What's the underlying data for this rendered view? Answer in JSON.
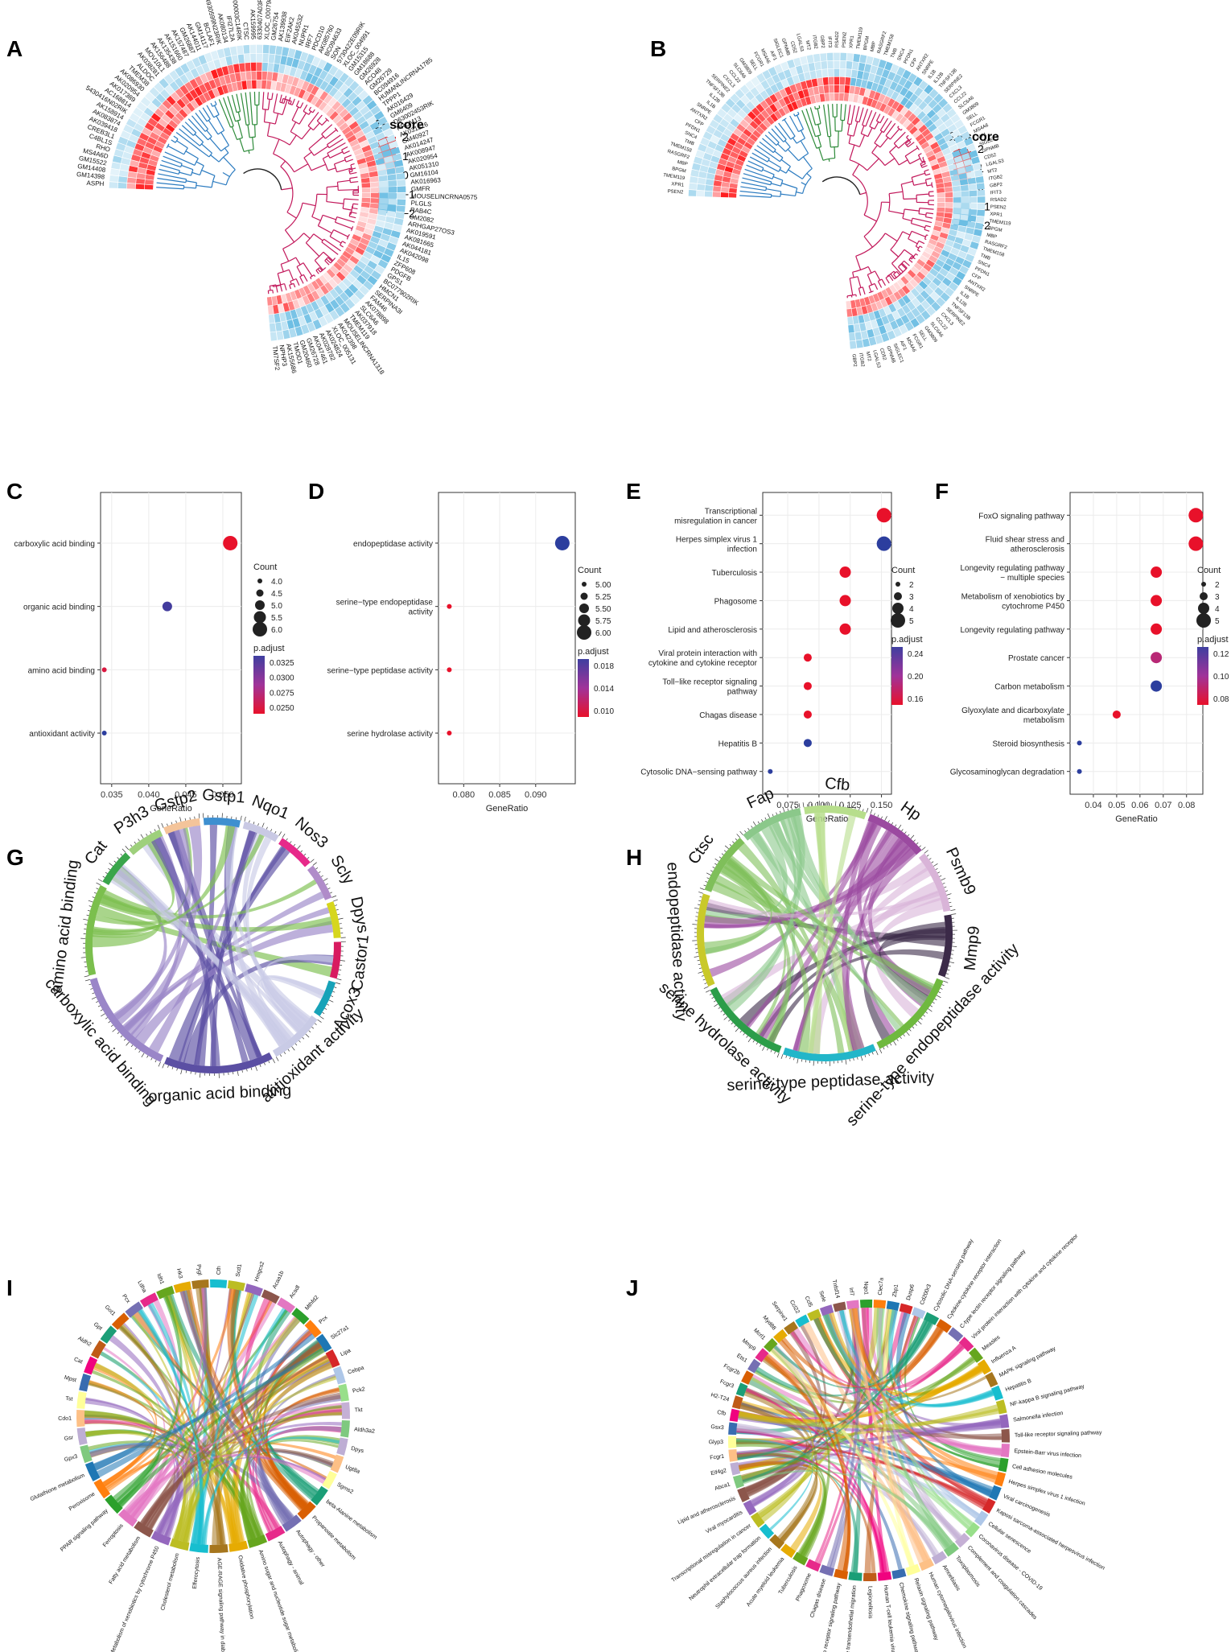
{
  "panels": {
    "A": {
      "label": "A",
      "legend_title": "Z−score",
      "legend_ticks": [
        "2",
        "1",
        "0",
        "−1",
        "−2"
      ],
      "up_genes": [
        "ASPH",
        "GM14398",
        "GM14408",
        "GM15522",
        "MS4A6D",
        "RHO",
        "C4BL1S",
        "CREB3L1",
        "AK039418",
        "AK083874",
        "AK158914",
        "5430416N02RIK",
        "AC168814",
        "AK017389",
        "AK020954",
        "AK086930",
        "TMEM38",
        "ALDOC",
        "AK038281",
        "MOV10L1",
        "AK156488",
        "AK135438",
        "AK151660",
        "AK157487",
        "GM26887",
        "AK144011",
        "GM14117",
        "BCLAF1",
        "4930599N23RIK",
        "AK080134",
        "IFI27L2A",
        "2400003C14RIK",
        "CTSC",
        "AK159995",
        "6330407A03RIK"
      ],
      "down_genes": [
        "XLOC_000798",
        "GM26754",
        "AK139938",
        "EIF2AK2",
        "AK045532",
        "NUPR1",
        "IRF7",
        "PDCD10",
        "AK085760",
        "BC094633",
        "SON",
        "5730422E09RIK",
        "XLOC_004991",
        "GM15315",
        "GM18688",
        "GM26928",
        "ACO48",
        "GM26729",
        "BC094916",
        "HUMANLINCRNA1785",
        "TPPP1",
        "AK016429",
        "GM6409",
        "D63002453RIK",
        "PRDM13",
        "AK031316",
        "GM40927",
        "AK014247",
        "AK008947",
        "AK020954",
        "AK051310",
        "GM16104",
        "AK016963",
        "GMFR",
        "MOUSELINCRNA0575",
        "PLGLS",
        "RAB4C",
        "GM2082",
        "ARHGAP27OS3",
        "AK019591",
        "AK081665",
        "AK044181",
        "AK042098",
        "IL15",
        "ZFP608",
        "PDGFB",
        "GPS1",
        "BC077902RIK",
        "HMCN1",
        "SERPINA3I",
        "FAM46",
        "AK078898",
        "SLC6A6",
        "AK037918",
        "TMEM119",
        "MOUSELINCRNA1318",
        "AK042398",
        "XLOC_005131",
        "AK024824",
        "AK028782",
        "AK047461",
        "GM26728",
        "GM20460",
        "TMOD1",
        "AK155686",
        "NPHP3",
        "TM7SF2"
      ]
    },
    "B": {
      "label": "B",
      "legend_title": "Z−score",
      "legend_ticks": [
        "2",
        "1",
        "0",
        "−1",
        "−2"
      ],
      "genes": [
        "PSEN2",
        "XPR1",
        "TMEM119",
        "BPGM",
        "MBP",
        "RASGRF2",
        "TMEM158",
        "TMB",
        "SNC4",
        "PFDN1",
        "CFP",
        "ANTXR2",
        "SNRPE",
        "IL1B",
        "IL12B",
        "TNFSF13B",
        "SERPINE2",
        "CXCL3",
        "CCL22",
        "SLC6A6",
        "GM3809",
        "SELL",
        "FCGR1",
        "MS4A6",
        "AIF1",
        "SIGLEC1",
        "GPNMB",
        "CD52",
        "LGALS3",
        "MT2",
        "ITGB2",
        "GBP2",
        "IFIT3",
        "RSAD2"
      ]
    },
    "C": {
      "label": "C",
      "chart_id": "C"
    },
    "D": {
      "label": "D",
      "chart_id": "D"
    },
    "E": {
      "label": "E",
      "chart_id": "E"
    },
    "F": {
      "label": "F",
      "chart_id": "F"
    },
    "G": {
      "label": "G",
      "genes": [
        {
          "name": "Cat",
          "color": "#3aa54b"
        },
        {
          "name": "P3h3",
          "color": "#9ed07c"
        },
        {
          "name": "Gstp2",
          "color": "#f4c49a"
        },
        {
          "name": "Gstp1",
          "color": "#3e8fd0"
        },
        {
          "name": "Nqo1",
          "color": "#c9c9e4"
        },
        {
          "name": "Nos3",
          "color": "#e7298a"
        },
        {
          "name": "Scly",
          "color": "#b08cc9"
        },
        {
          "name": "Dpys",
          "color": "#d6d61e"
        },
        {
          "name": "Castor1",
          "color": "#d81b60"
        },
        {
          "name": "Acox3",
          "color": "#17a2b8"
        }
      ],
      "terms": [
        {
          "name": "antioxidant activity",
          "color": "#c9cbe6"
        },
        {
          "name": "organic acid binding",
          "color": "#5b4fa3"
        },
        {
          "name": "carboxylic acid binding",
          "color": "#9a86c8"
        },
        {
          "name": "amino acid binding",
          "color": "#7bbf4d"
        }
      ]
    },
    "H": {
      "label": "H",
      "genes": [
        {
          "name": "Ctsc",
          "color": "#7fbf5a"
        },
        {
          "name": "Fap",
          "color": "#8bc88a"
        },
        {
          "name": "Cfb",
          "color": "#b7de8c"
        },
        {
          "name": "Hp",
          "color": "#9b4aa0"
        },
        {
          "name": "Psmb9",
          "color": "#d9b4d8"
        },
        {
          "name": "Mmp9",
          "color": "#3b2a48"
        }
      ],
      "terms": [
        {
          "name": "serine-type endopeptidase activity",
          "color": "#6fb93f"
        },
        {
          "name": "serine-type peptidase activity",
          "color": "#22b6c9"
        },
        {
          "name": "serine hydrolase activity",
          "color": "#2c9d49"
        },
        {
          "name": "endopeptidase activity",
          "color": "#c9c92a"
        }
      ]
    },
    "I": {
      "label": "I",
      "top_labels": [
        "Gpx3",
        "Gsr",
        "Cdo1",
        "Tst",
        "Mpst",
        "Cat",
        "Aldh2",
        "Gpt",
        "Got1",
        "Pcx",
        "Ldha",
        "Idh1",
        "Hk3",
        "Pygl",
        "Cth",
        "Scd1",
        "Hmgcs2",
        "Acaa1b",
        "Acadl",
        "Mthfd2",
        "Pcx",
        "Slc27a1",
        "Lipa",
        "Cebpa",
        "Pck2",
        "Tkt",
        "Aldh3a2",
        "Dpys",
        "Ugt8a",
        "Sgms2"
      ],
      "bottom_labels": [
        "beta-Alanine metabolism",
        "Propanoate metabolism",
        "Autophagy - other",
        "Autophagy - animal",
        "Amino sugar and nucleotide sugar metabolism",
        "Oxidative phosphorylation",
        "AGE-RAGE signaling pathway in diabetic complications",
        "Efferocytosis",
        "Cholesterol metabolism",
        "Metabolism of xenobiotics by cytochrome P450",
        "Fatty acid metabolism",
        "Ferroptosis",
        "PPAR signaling pathway",
        "Peroxisome",
        "Glutathione metabolism"
      ]
    },
    "J": {
      "label": "J",
      "top_labels": [
        "Abca1",
        "Eif4g2",
        "Fcgr1",
        "Glyp3",
        "Gsx3",
        "Cfb",
        "H2-T24",
        "Fcgr3",
        "Fcgr2b",
        "Ets1",
        "Mmp9",
        "Mcrl1",
        "Myd88",
        "Serpine1",
        "Ccl22",
        "Ccl5",
        "Sele",
        "Tnfsf14",
        "Irf7",
        "Nqo1",
        "Clec7a",
        "Zbp1",
        "Dusp6",
        "Cd200r3"
      ],
      "bottom_labels": [
        "Cytosolic DNA-sensing pathway",
        "Cytokine-cytokine receptor interaction",
        "C-type lectin receptor signaling pathway",
        "Viral protein interaction with cytokine and cytokine receptor",
        "Measles",
        "Influenza A",
        "MAPK signaling pathway",
        "Hepatitis B",
        "NF-kappa B signaling pathway",
        "Salmonella infection",
        "Toll-like receptor signaling pathway",
        "Epstein-Barr virus infection",
        "Cell adhesion molecules",
        "Herpes simplex virus 1 infection",
        "Viral carcinogenesis",
        "Kaposi sarcoma-associated herpesvirus infection",
        "Cellular senescence",
        "Coronavirus disease - COVID-19",
        "Complement and coagulation cascades",
        "Toxoplasmosis",
        "Amoebiasis",
        "Human cytomegalovirus infection",
        "Relaxin signaling pathway",
        "Chemokine signaling pathway",
        "Human T-cell leukemia virus 1 infection",
        "Legionellosis",
        "Leukocyte transendothelial migration",
        "NOD-like receptor signaling pathway",
        "Chagas disease",
        "Phagosome",
        "Tuberculosis",
        "Acute myeloid leukemia",
        "Staphylococcus aureus infection",
        "Neutrophil extracellular trap formation",
        "Transcriptional misregulation in cancer",
        "Viral myocarditis",
        "Lipid and atherosclerosis"
      ]
    }
  },
  "chart_data": [
    {
      "id": "C",
      "type": "scatter",
      "xlabel": "GeneRatio",
      "ylabel": "",
      "categories": [
        "carboxylic acid binding",
        "organic acid binding",
        "amino acid binding",
        "antioxidant activity"
      ],
      "x": [
        0.051,
        0.0425,
        0.034,
        0.034
      ],
      "count": [
        6,
        5,
        4,
        4
      ],
      "padj": [
        0.025,
        0.034,
        0.026,
        0.035
      ],
      "xlim": [
        0.0335,
        0.0525
      ],
      "xticks": [
        "0.035",
        "0.040",
        "0.045",
        "0.050"
      ],
      "xtick_vals": [
        0.035,
        0.04,
        0.045,
        0.05
      ],
      "count_title": "Count",
      "count_ticks": [
        "4.0",
        "4.5",
        "5.0",
        "5.5",
        "6.0"
      ],
      "count_vals": [
        4.0,
        4.5,
        5.0,
        5.5,
        6.0
      ],
      "padj_title": "p.adjust",
      "padj_ticks": [
        "0.0325",
        "0.0300",
        "0.0275",
        "0.0250"
      ]
    },
    {
      "id": "D",
      "type": "scatter",
      "xlabel": "GeneRatio",
      "ylabel": "",
      "categories": [
        "endopeptidase activity",
        "serine−type endopeptidase\nactivity",
        "serine−type peptidase activity",
        "serine hydrolase activity"
      ],
      "x": [
        0.0937,
        0.078,
        0.078,
        0.078
      ],
      "count": [
        6,
        5,
        5,
        5
      ],
      "padj": [
        0.02,
        0.009,
        0.009,
        0.009
      ],
      "xlim": [
        0.0765,
        0.0955
      ],
      "xticks": [
        "0.080",
        "0.085",
        "0.090"
      ],
      "xtick_vals": [
        0.08,
        0.085,
        0.09
      ],
      "count_title": "Count",
      "count_ticks": [
        "5.00",
        "5.25",
        "5.50",
        "5.75",
        "6.00"
      ],
      "count_vals": [
        5.0,
        5.25,
        5.5,
        5.75,
        6.0
      ],
      "padj_title": "p.adjust",
      "padj_ticks": [
        "0.018",
        "0.014",
        "0.010"
      ]
    },
    {
      "id": "E",
      "type": "scatter",
      "xlabel": "GeneRatio",
      "ylabel": "",
      "categories": [
        "Transcriptional\nmisregulation in cancer",
        "Herpes simplex virus 1\ninfection",
        "Tuberculosis",
        "Phagosome",
        "Lipid and atherosclerosis",
        "Viral protein interaction with\ncytokine and cytokine receptor",
        "Toll−like receptor signaling\npathway",
        "Chagas disease",
        "Hepatitis B",
        "Cytosolic DNA−sensing pathway"
      ],
      "x": [
        0.152,
        0.152,
        0.121,
        0.121,
        0.121,
        0.091,
        0.091,
        0.091,
        0.091,
        0.061
      ],
      "count": [
        5,
        5,
        4,
        4,
        4,
        3,
        3,
        3,
        3,
        2
      ],
      "padj": [
        0.14,
        0.28,
        0.14,
        0.14,
        0.14,
        0.14,
        0.14,
        0.14,
        0.28,
        0.28
      ],
      "xlim": [
        0.055,
        0.158
      ],
      "xticks": [
        "0.075",
        "0.100",
        "0.125",
        "0.150"
      ],
      "xtick_vals": [
        0.075,
        0.1,
        0.125,
        0.15
      ],
      "count_title": "Count",
      "count_ticks": [
        "2",
        "3",
        "4",
        "5"
      ],
      "count_vals": [
        2,
        3,
        4,
        5
      ],
      "padj_title": "p.adjust",
      "padj_ticks": [
        "0.24",
        "0.20",
        "0.16"
      ]
    },
    {
      "id": "F",
      "type": "scatter",
      "xlabel": "GeneRatio",
      "ylabel": "",
      "categories": [
        "FoxO signaling pathway",
        "Fluid shear stress and\natherosclerosis",
        "Longevity regulating pathway\n− multiple species",
        "Metabolism of xenobiotics by\ncytochrome P450",
        "Longevity regulating pathway",
        "Prostate cancer",
        "Carbon metabolism",
        "Glyoxylate and dicarboxylate\nmetabolism",
        "Steroid biosynthesis",
        "Glycosaminoglycan degradation"
      ],
      "x": [
        0.084,
        0.084,
        0.067,
        0.067,
        0.067,
        0.067,
        0.067,
        0.05,
        0.034,
        0.034
      ],
      "count": [
        5,
        5,
        4,
        4,
        4,
        4,
        4,
        3,
        2,
        2
      ],
      "padj": [
        0.07,
        0.07,
        0.07,
        0.07,
        0.07,
        0.09,
        0.13,
        0.07,
        0.13,
        0.13
      ],
      "xlim": [
        0.03,
        0.087
      ],
      "xticks": [
        "0.04",
        "0.05",
        "0.06",
        "0.07",
        "0.08"
      ],
      "xtick_vals": [
        0.04,
        0.05,
        0.06,
        0.07,
        0.08
      ],
      "count_title": "Count",
      "count_ticks": [
        "2",
        "3",
        "4",
        "5"
      ],
      "count_vals": [
        2,
        3,
        4,
        5
      ],
      "padj_title": "p.adjust",
      "padj_ticks": [
        "0.12",
        "0.10",
        "0.08"
      ]
    }
  ],
  "colors": {
    "red": "#e41a1c",
    "blue": "#2c3e9e",
    "purple": "#7b3fa0",
    "upRed": "#e31a1c",
    "downBlue": "#5bb6e0",
    "axis": "#333333",
    "grid": "#ebebeb"
  }
}
